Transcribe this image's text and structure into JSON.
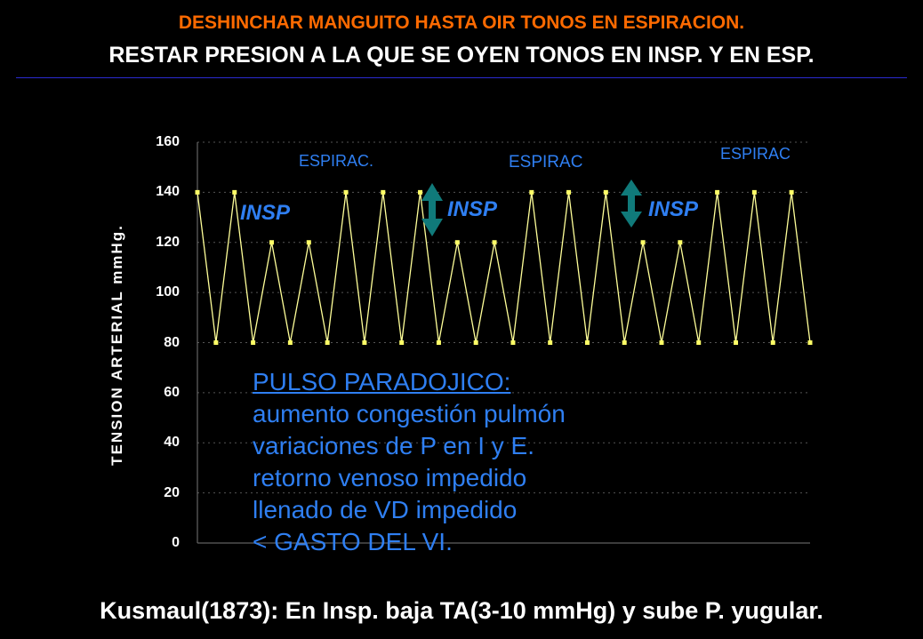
{
  "title_line1": "DESHINCHAR MANGUITO HASTA OIR TONOS EN ESPIRACION.",
  "title_line2": "RESTAR  PRESION A LA QUE SE OYEN TONOS EN INSP. Y EN ESP.",
  "footer": "Kusmaul(1873): En Insp. baja TA(3-10 mmHg) y sube P. yugular.",
  "note": {
    "heading": "PULSO PARADOJICO:",
    "lines": [
      "aumento congestión pulmón",
      "variaciones de P en I y E.",
      "retorno venoso impedido",
      "llenado de VD impedido",
      "< GASTO DEL VI."
    ]
  },
  "labels": {
    "espirac_1": "ESPIRAC.",
    "espirac_2": "ESPIRAC",
    "espirac_3": "ESPIRAC",
    "insp_1": "INSP",
    "insp_2": "INSP",
    "insp_3": "INSP"
  },
  "colors": {
    "title_accent": "#ff6a00",
    "line": "#ffff99",
    "markers": "#ffff66",
    "annotation_text": "#2f7ff2",
    "arrow": "#107a7a",
    "rule": "#2a2ad0"
  },
  "chart_data": {
    "type": "line",
    "title": "",
    "xlabel": "",
    "ylabel": "TENSION ARTERIAL mmHg.",
    "ylim": [
      0,
      160
    ],
    "y_ticks": [
      0,
      20,
      40,
      60,
      80,
      100,
      120,
      140,
      160
    ],
    "grid": true,
    "series": [
      {
        "values": [
          140,
          80,
          140,
          80,
          120,
          80,
          120,
          80,
          140,
          80,
          140,
          80,
          140,
          80,
          120,
          80,
          120,
          80,
          140,
          80,
          140,
          80,
          140,
          80,
          120,
          80,
          120,
          80,
          140,
          80,
          140,
          80,
          140,
          80
        ]
      }
    ]
  }
}
